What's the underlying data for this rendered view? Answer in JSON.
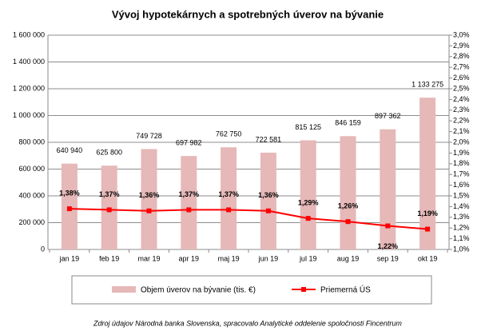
{
  "chart_data": {
    "type": "bar-line",
    "title": "Vývoj hypotekárnych a spotrebných úverov na bývanie",
    "categories": [
      "jan 19",
      "feb 19",
      "mar 19",
      "apr 19",
      "maj 19",
      "jun 19",
      "jul 19",
      "aug 19",
      "sep 19",
      "okt 19"
    ],
    "series": [
      {
        "name": "Objem úverov na bývanie (tis. €)",
        "type": "bar",
        "color": "#e6b8b7",
        "values": [
          640940,
          625800,
          749728,
          697982,
          762750,
          722581,
          815125,
          846159,
          897362,
          1133275
        ],
        "value_labels": [
          "640 940",
          "625 800",
          "749 728",
          "697 982",
          "762 750",
          "722 581",
          "815 125",
          "846 159",
          "897 362",
          "1 133 275"
        ]
      },
      {
        "name": "Priemerná ÚS",
        "type": "line",
        "axis": "y2",
        "color": "#ff0000",
        "values": [
          1.38,
          1.37,
          1.36,
          1.37,
          1.37,
          1.36,
          1.29,
          1.26,
          1.22,
          1.19
        ],
        "value_labels": [
          "1,38%",
          "1,37%",
          "1,36%",
          "1,37%",
          "1,37%",
          "1,36%",
          "1,29%",
          "1,26%",
          "1,22%",
          "1,19%"
        ]
      }
    ],
    "ylim": [
      0,
      1600000
    ],
    "yticks": [
      0,
      {
        "value": 200000,
        "label": "200 000"
      },
      {
        "value": 400000,
        "label": "400 000"
      },
      {
        "value": 600000,
        "label": "600 000"
      },
      {
        "value": 800000,
        "label": "800 000"
      },
      {
        "value": 1000000,
        "label": "1 000 000"
      },
      {
        "value": 1200000,
        "label": "1 200 000"
      },
      {
        "value": 1400000,
        "label": "1 400 000"
      },
      {
        "value": 1600000,
        "label": "1 600 000"
      }
    ],
    "y2lim": [
      1.0,
      3.0
    ],
    "y2ticks": [
      {
        "value": 1.0,
        "label": "1,0%"
      },
      {
        "value": 1.1,
        "label": "1,1%"
      },
      {
        "value": 1.2,
        "label": "1,2%"
      },
      {
        "value": 1.3,
        "label": "1,3%"
      },
      {
        "value": 1.4,
        "label": "1,4%"
      },
      {
        "value": 1.5,
        "label": "1,5%"
      },
      {
        "value": 1.6,
        "label": "1,6%"
      },
      {
        "value": 1.7,
        "label": "1,7%"
      },
      {
        "value": 1.8,
        "label": "1,8%"
      },
      {
        "value": 1.9,
        "label": "1,9%"
      },
      {
        "value": 2.0,
        "label": "2,0%"
      },
      {
        "value": 2.1,
        "label": "2,1%"
      },
      {
        "value": 2.2,
        "label": "2,2%"
      },
      {
        "value": 2.3,
        "label": "2,3%"
      },
      {
        "value": 2.4,
        "label": "2,4%"
      },
      {
        "value": 2.5,
        "label": "2,5%"
      },
      {
        "value": 2.6,
        "label": "2,6%"
      },
      {
        "value": 2.7,
        "label": "2,7%"
      },
      {
        "value": 2.8,
        "label": "2,8%"
      },
      {
        "value": 2.9,
        "label": "2,9%"
      },
      {
        "value": 3.0,
        "label": "3,0%"
      }
    ],
    "grid": true,
    "note": "Zdroj údajov Národná banka Slovenska, spracovalo Analytické oddelenie spoločnosti Fincentrum"
  }
}
